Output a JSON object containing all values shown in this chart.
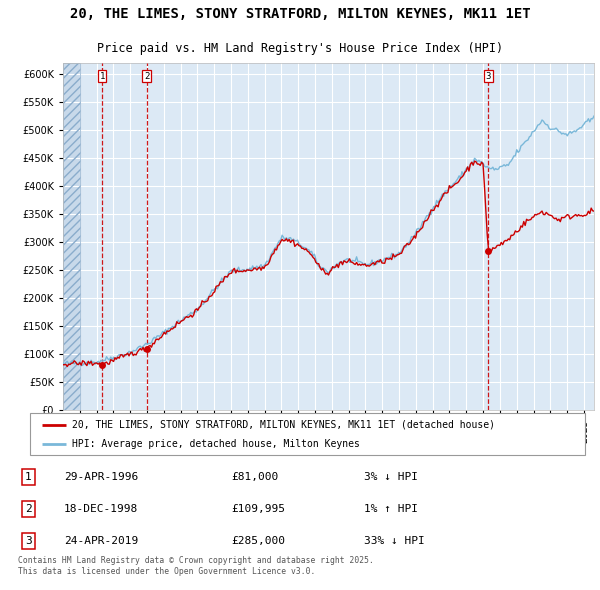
{
  "title": "20, THE LIMES, STONY STRATFORD, MILTON KEYNES, MK11 1ET",
  "subtitle": "Price paid vs. HM Land Registry's House Price Index (HPI)",
  "hpi_label": "HPI: Average price, detached house, Milton Keynes",
  "price_label": "20, THE LIMES, STONY STRATFORD, MILTON KEYNES, MK11 1ET (detached house)",
  "hpi_color": "#7ab8d9",
  "price_color": "#cc0000",
  "plot_bg_color": "#dce9f5",
  "ylim": [
    0,
    620000
  ],
  "yticks": [
    0,
    50000,
    100000,
    150000,
    200000,
    250000,
    300000,
    350000,
    400000,
    450000,
    500000,
    550000,
    600000
  ],
  "xlim_start": 1994.0,
  "xlim_end": 2025.6,
  "transactions": [
    {
      "num": 1,
      "date": "29-APR-1996",
      "price": 81000,
      "hpi_diff": "3% ↓ HPI",
      "x_year": 1996.33
    },
    {
      "num": 2,
      "date": "18-DEC-1998",
      "price": 109995,
      "hpi_diff": "1% ↑ HPI",
      "x_year": 1998.97
    },
    {
      "num": 3,
      "date": "24-APR-2019",
      "price": 285000,
      "hpi_diff": "33% ↓ HPI",
      "x_year": 2019.31
    }
  ],
  "hpi_key_years": [
    1994.0,
    1995.0,
    1996.0,
    1997.0,
    1998.0,
    1999.0,
    2000.0,
    2001.0,
    2002.0,
    2003.0,
    2004.0,
    2005.0,
    2006.0,
    2007.0,
    2007.6,
    2008.2,
    2008.8,
    2009.3,
    2009.8,
    2010.5,
    2011.0,
    2012.0,
    2012.5,
    2013.0,
    2014.0,
    2015.0,
    2016.0,
    2017.0,
    2017.5,
    2018.0,
    2018.5,
    2019.0,
    2019.3,
    2019.8,
    2020.5,
    2021.0,
    2021.5,
    2022.0,
    2022.5,
    2023.0,
    2023.5,
    2024.0,
    2024.5,
    2025.0,
    2025.5
  ],
  "hpi_key_values": [
    83000,
    84000,
    86000,
    94000,
    103000,
    118000,
    138000,
    160000,
    180000,
    215000,
    248000,
    252000,
    258000,
    308000,
    305000,
    295000,
    280000,
    255000,
    248000,
    265000,
    268000,
    260000,
    263000,
    268000,
    280000,
    315000,
    362000,
    398000,
    412000,
    430000,
    448000,
    440000,
    432000,
    430000,
    438000,
    460000,
    478000,
    498000,
    518000,
    505000,
    498000,
    492000,
    498000,
    510000,
    520000
  ],
  "price_key_years": [
    1994.0,
    1996.0,
    1996.33,
    1998.0,
    1998.97,
    2000.0,
    2001.0,
    2002.0,
    2003.0,
    2004.0,
    2005.0,
    2006.0,
    2007.0,
    2007.6,
    2008.0,
    2008.8,
    2009.3,
    2009.8,
    2010.5,
    2011.0,
    2012.0,
    2013.0,
    2014.0,
    2015.0,
    2016.0,
    2017.0,
    2017.5,
    2018.0,
    2018.5,
    2019.0,
    2019.31,
    2019.35,
    2019.7,
    2020.0,
    2020.5,
    2021.0,
    2021.5,
    2022.0,
    2022.5,
    2023.0,
    2023.5,
    2024.0,
    2024.5,
    2025.0,
    2025.5
  ],
  "price_key_values": [
    83000,
    84000,
    81000,
    100000,
    109995,
    136000,
    158000,
    178000,
    213000,
    248000,
    250000,
    255000,
    305000,
    302000,
    295000,
    278000,
    252000,
    246000,
    263000,
    265000,
    258000,
    265000,
    277000,
    312000,
    358000,
    395000,
    408000,
    428000,
    446000,
    437000,
    285000,
    285000,
    290000,
    295000,
    305000,
    320000,
    335000,
    345000,
    355000,
    348000,
    340000,
    345000,
    348000,
    350000,
    355000
  ],
  "footnote": "Contains HM Land Registry data © Crown copyright and database right 2025.\nThis data is licensed under the Open Government Licence v3.0.",
  "title_fontsize": 10,
  "subtitle_fontsize": 8.5,
  "tick_fontsize": 7,
  "legend_fontsize": 7,
  "table_fontsize": 8
}
